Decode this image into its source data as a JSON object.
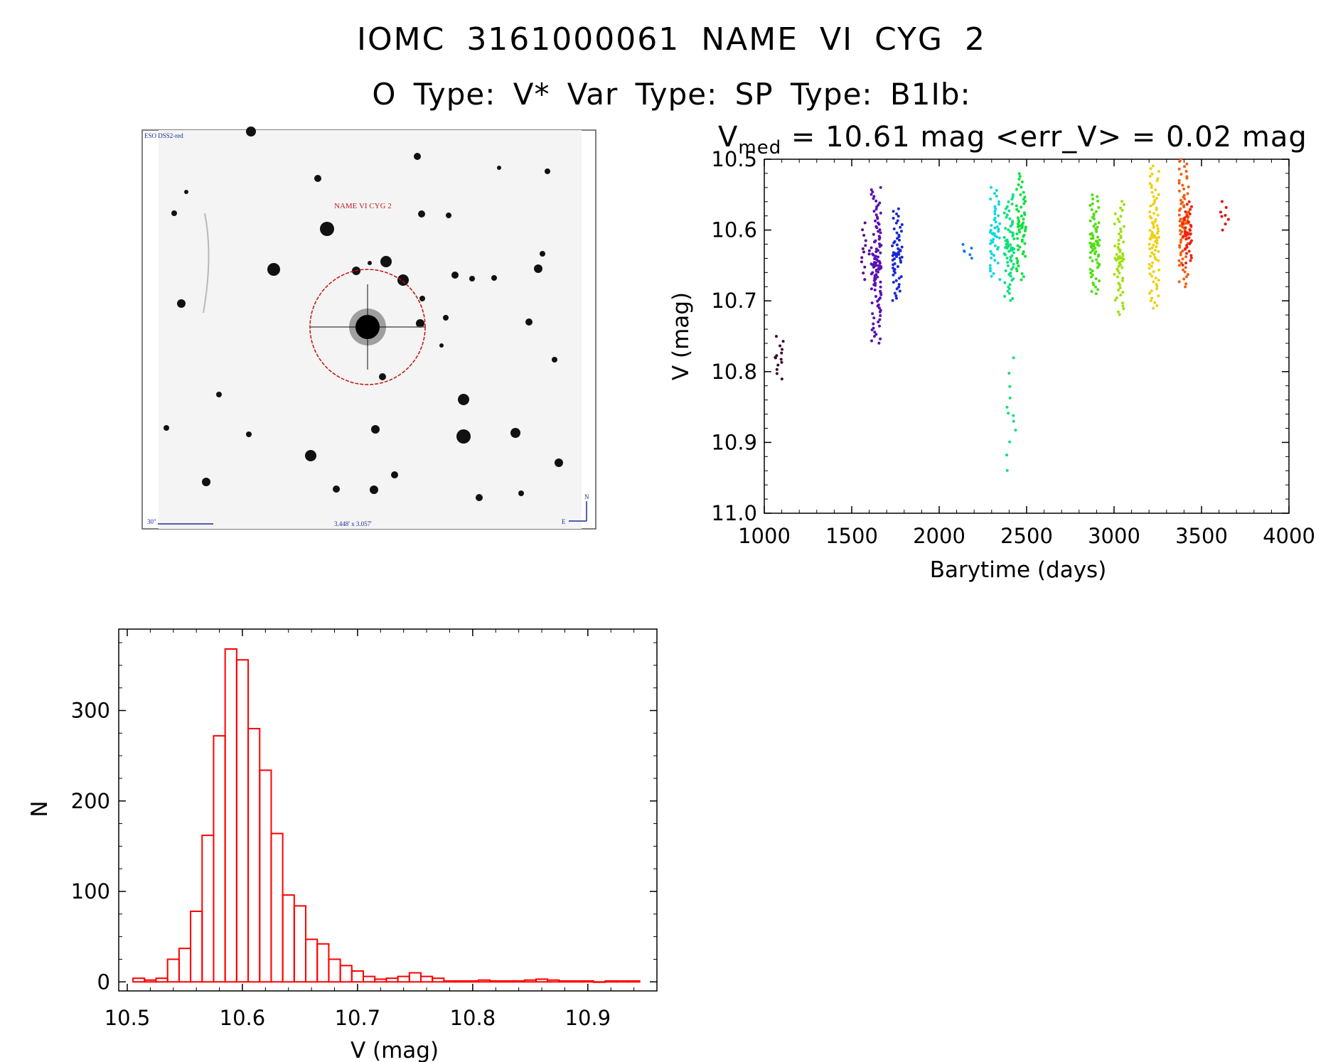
{
  "header": {
    "title_line1": "IOMC 3161000061   NAME VI CYG 2",
    "title_line2": "O Type: V*  Var Type:   SP Type: B1Ib:"
  },
  "finder_image": {
    "survey_label": "ESO DSS2-red",
    "object_label": "NAME VI CYG 2",
    "scale_label": "30\"",
    "size_label": "3.448' x 3.057'",
    "north_label": "N",
    "east_label": "E",
    "circle_color": "#c01010",
    "scale_color": "#1a2a9a"
  },
  "light_curve": {
    "header_prefix": "V",
    "header_sub": "med",
    "header_rest": " = 10.61 mag <err_V> = 0.02 mag"
  },
  "chart_data": [
    {
      "type": "scatter",
      "xlabel": "Barytime (days)",
      "ylabel": "V (mag)",
      "xlim": [
        1000,
        4000
      ],
      "ylim": [
        11.0,
        10.5
      ],
      "inverted_y": true,
      "x_ticks": [
        "1000",
        "1500",
        "2000",
        "2500",
        "3000",
        "3500",
        "4000"
      ],
      "y_ticks": [
        "10.5",
        "10.6",
        "10.7",
        "10.8",
        "10.9",
        "11.0"
      ],
      "groups": [
        {
          "x": 1080,
          "ymin": 10.75,
          "ymax": 10.81,
          "n": 14,
          "color": "#3a0a2e"
        },
        {
          "x": 1580,
          "ymin": 10.59,
          "ymax": 10.67,
          "n": 14,
          "color": "#5a0a8a"
        },
        {
          "x": 1640,
          "ymin": 10.54,
          "ymax": 10.76,
          "n": 110,
          "color": "#5a10b0"
        },
        {
          "x": 1760,
          "ymin": 10.57,
          "ymax": 10.7,
          "n": 60,
          "color": "#1a2ad0"
        },
        {
          "x": 2160,
          "ymin": 10.62,
          "ymax": 10.64,
          "n": 6,
          "color": "#1a7ae8"
        },
        {
          "x": 2320,
          "ymin": 10.54,
          "ymax": 10.67,
          "n": 50,
          "color": "#10d8e0"
        },
        {
          "x": 2400,
          "ymin": 10.55,
          "ymax": 10.7,
          "n": 70,
          "color": "#10e080"
        },
        {
          "x": 2410,
          "ymin": 10.78,
          "ymax": 10.94,
          "n": 12,
          "color": "#10e080"
        },
        {
          "x": 2470,
          "ymin": 10.52,
          "ymax": 10.67,
          "n": 60,
          "color": "#10e040"
        },
        {
          "x": 2890,
          "ymin": 10.55,
          "ymax": 10.69,
          "n": 70,
          "color": "#50e010"
        },
        {
          "x": 3030,
          "ymin": 10.56,
          "ymax": 10.72,
          "n": 60,
          "color": "#a0e010"
        },
        {
          "x": 3230,
          "ymin": 10.51,
          "ymax": 10.71,
          "n": 90,
          "color": "#f0d010"
        },
        {
          "x": 3400,
          "ymin": 10.5,
          "ymax": 10.68,
          "n": 80,
          "color": "#f06010"
        },
        {
          "x": 3420,
          "ymin": 10.56,
          "ymax": 10.65,
          "n": 40,
          "color": "#f02010"
        },
        {
          "x": 3630,
          "ymin": 10.56,
          "ymax": 10.6,
          "n": 8,
          "color": "#e01010"
        }
      ]
    },
    {
      "type": "bar",
      "xlabel": "V (mag)",
      "ylabel": "N",
      "xlim": [
        10.5,
        10.96
      ],
      "ylim": [
        -10,
        390
      ],
      "x_ticks": [
        "10.5",
        "10.6",
        "10.7",
        "10.8",
        "10.9"
      ],
      "y_ticks": [
        "0",
        "100",
        "200",
        "300"
      ],
      "bin_width": 0.01,
      "bin_starts": [
        10.505,
        10.515,
        10.525,
        10.535,
        10.545,
        10.555,
        10.565,
        10.575,
        10.585,
        10.595,
        10.605,
        10.615,
        10.625,
        10.635,
        10.645,
        10.655,
        10.665,
        10.675,
        10.685,
        10.695,
        10.705,
        10.715,
        10.725,
        10.735,
        10.745,
        10.755,
        10.765,
        10.775,
        10.785,
        10.795,
        10.805,
        10.815,
        10.825,
        10.835,
        10.845,
        10.855,
        10.865,
        10.875,
        10.885,
        10.895,
        10.905,
        10.915,
        10.925,
        10.935
      ],
      "values": [
        4,
        2,
        4,
        25,
        37,
        78,
        162,
        272,
        368,
        356,
        280,
        234,
        164,
        96,
        84,
        47,
        42,
        25,
        18,
        12,
        6,
        3,
        4,
        6,
        10,
        6,
        4,
        1,
        1,
        1,
        2,
        1,
        1,
        1,
        2,
        3,
        2,
        1,
        1,
        1,
        0,
        1,
        1,
        1
      ],
      "color": "#ff0000"
    }
  ]
}
